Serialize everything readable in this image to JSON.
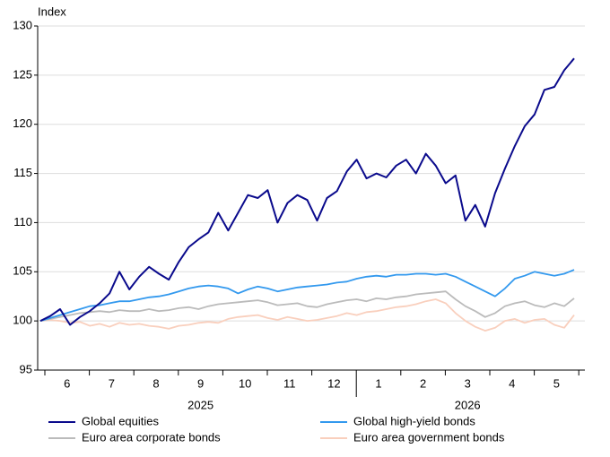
{
  "chart_data": {
    "type": "line",
    "y_label": "Index",
    "months": [
      "6",
      "7",
      "8",
      "9",
      "10",
      "11",
      "12",
      "1",
      "2",
      "3",
      "4",
      "5"
    ],
    "years": [
      "2025",
      "2026"
    ],
    "ylim": [
      95,
      130
    ],
    "yticks": [
      95,
      100,
      105,
      110,
      115,
      120,
      125,
      130
    ],
    "grid": true,
    "series": [
      {
        "name": "Global equities",
        "color": "#0a0a8c",
        "values": [
          100.0,
          100.5,
          101.2,
          99.6,
          100.4,
          101.0,
          101.8,
          102.8,
          105.0,
          103.2,
          104.5,
          105.5,
          104.8,
          104.2,
          106.0,
          107.5,
          108.3,
          109.0,
          111.0,
          109.2,
          111.0,
          112.8,
          112.5,
          113.3,
          110.0,
          112.0,
          112.8,
          112.3,
          110.2,
          112.5,
          113.2,
          115.2,
          116.4,
          114.5,
          115.0,
          114.6,
          115.8,
          116.4,
          115.0,
          117.0,
          115.8,
          114.0,
          114.8,
          110.2,
          111.8,
          109.6,
          113.0,
          115.5,
          117.8,
          119.8,
          121.0,
          123.5,
          123.8,
          125.5,
          126.7
        ]
      },
      {
        "name": "Global high-yield bonds",
        "color": "#3399ee",
        "values": [
          100.0,
          100.3,
          100.6,
          100.9,
          101.2,
          101.5,
          101.6,
          101.8,
          102.0,
          102.0,
          102.2,
          102.4,
          102.5,
          102.7,
          103.0,
          103.3,
          103.5,
          103.6,
          103.5,
          103.3,
          102.8,
          103.2,
          103.5,
          103.3,
          103.0,
          103.2,
          103.4,
          103.5,
          103.6,
          103.7,
          103.9,
          104.0,
          104.3,
          104.5,
          104.6,
          104.5,
          104.7,
          104.7,
          104.8,
          104.8,
          104.7,
          104.8,
          104.5,
          104.0,
          103.5,
          103.0,
          102.5,
          103.3,
          104.3,
          104.6,
          105.0,
          104.8,
          104.6,
          104.8,
          105.2
        ]
      },
      {
        "name": "Euro area corporate bonds",
        "color": "#bbbbbb",
        "values": [
          100.0,
          100.2,
          100.4,
          100.6,
          100.8,
          100.9,
          101.0,
          100.9,
          101.1,
          101.0,
          101.0,
          101.2,
          101.0,
          101.1,
          101.3,
          101.4,
          101.2,
          101.5,
          101.7,
          101.8,
          101.9,
          102.0,
          102.1,
          101.9,
          101.6,
          101.7,
          101.8,
          101.5,
          101.4,
          101.7,
          101.9,
          102.1,
          102.2,
          102.0,
          102.3,
          102.2,
          102.4,
          102.5,
          102.7,
          102.8,
          102.9,
          103.0,
          102.2,
          101.5,
          101.0,
          100.4,
          100.8,
          101.5,
          101.8,
          102.0,
          101.6,
          101.4,
          101.8,
          101.5,
          102.3
        ]
      },
      {
        "name": "Euro area government bonds",
        "color": "#f9cfbd",
        "values": [
          100.0,
          100.1,
          100.0,
          99.8,
          99.9,
          99.5,
          99.7,
          99.4,
          99.8,
          99.6,
          99.7,
          99.5,
          99.4,
          99.2,
          99.5,
          99.6,
          99.8,
          99.9,
          99.8,
          100.2,
          100.4,
          100.5,
          100.6,
          100.3,
          100.1,
          100.4,
          100.2,
          100.0,
          100.1,
          100.3,
          100.5,
          100.8,
          100.6,
          100.9,
          101.0,
          101.2,
          101.4,
          101.5,
          101.7,
          102.0,
          102.2,
          101.8,
          100.8,
          100.0,
          99.4,
          99.0,
          99.3,
          100.0,
          100.2,
          99.8,
          100.1,
          100.2,
          99.6,
          99.3,
          100.6
        ]
      }
    ]
  }
}
